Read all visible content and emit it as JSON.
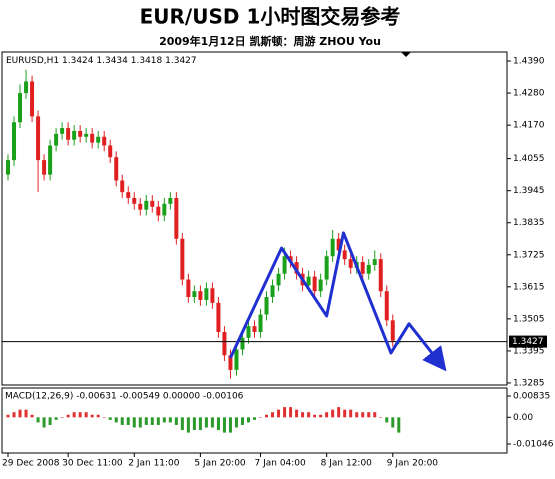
{
  "chart_data": [
    {
      "type": "candlestick",
      "title": "EUR/USD 1小时图交易参考",
      "subtitle": "2009年1月12日  凯斯顿：周游 ZHOU You",
      "symbol": "EURUSD,H1",
      "up_color": "#1aa01a",
      "down_color": "#e02020",
      "xlim": [
        -1,
        83
      ],
      "ylim": [
        1.3278,
        1.4421
      ],
      "yticks": [
        {
          "value": 1.439,
          "label": "1.4390"
        },
        {
          "value": 1.428,
          "label": "1.4280"
        },
        {
          "value": 1.417,
          "label": "1.4170"
        },
        {
          "value": 1.4055,
          "label": "1.4055"
        },
        {
          "value": 1.3945,
          "label": "1.3945"
        },
        {
          "value": 1.3835,
          "label": "1.3835"
        },
        {
          "value": 1.3725,
          "label": "1.3725"
        },
        {
          "value": 1.3615,
          "label": "1.3615"
        },
        {
          "value": 1.3505,
          "label": "1.3505"
        },
        {
          "value": 1.3395,
          "label": "1.3395"
        },
        {
          "value": 1.3285,
          "label": "1.3285"
        }
      ],
      "xticks": [
        {
          "value": 0,
          "label": "29 Dec 2008"
        },
        {
          "value": 10,
          "label": "30 Dec 11:00"
        },
        {
          "value": 21,
          "label": "2 Jan 11:00"
        },
        {
          "value": 32,
          "label": "5 Jan 20:00"
        },
        {
          "value": 42,
          "label": "7 Jan 04:00"
        },
        {
          "value": 53,
          "label": "8 Jan 12:00"
        },
        {
          "value": 64,
          "label": "9 Jan 20:00"
        }
      ],
      "open": [
        1.4,
        1.405,
        1.418,
        1.428,
        1.432,
        1.42,
        1.405,
        1.4,
        1.41,
        1.414,
        1.416,
        1.412,
        1.415,
        1.413,
        1.414,
        1.411,
        1.413,
        1.41,
        1.406,
        1.398,
        1.394,
        1.392,
        1.39,
        1.388,
        1.391,
        1.389,
        1.386,
        1.39,
        1.392,
        1.378,
        1.364,
        1.358,
        1.36,
        1.357,
        1.361,
        1.356,
        1.346,
        1.338,
        1.333,
        1.34,
        1.344,
        1.348,
        1.346,
        1.352,
        1.358,
        1.362,
        1.366,
        1.372,
        1.37,
        1.366,
        1.362,
        1.365,
        1.36,
        1.364,
        1.372,
        1.378,
        1.374,
        1.371,
        1.368,
        1.37,
        1.366,
        1.369,
        1.371,
        1.36,
        1.35,
        1.3424
      ],
      "high": [
        1.407,
        1.42,
        1.431,
        1.436,
        1.434,
        1.422,
        1.407,
        1.412,
        1.416,
        1.418,
        1.418,
        1.417,
        1.417,
        1.416,
        1.416,
        1.415,
        1.415,
        1.412,
        1.408,
        1.4,
        1.396,
        1.394,
        1.392,
        1.393,
        1.393,
        1.391,
        1.392,
        1.394,
        1.394,
        1.38,
        1.366,
        1.362,
        1.362,
        1.363,
        1.363,
        1.358,
        1.348,
        1.34,
        1.342,
        1.346,
        1.35,
        1.35,
        1.354,
        1.36,
        1.364,
        1.368,
        1.375,
        1.374,
        1.372,
        1.368,
        1.367,
        1.367,
        1.366,
        1.374,
        1.381,
        1.38,
        1.376,
        1.373,
        1.372,
        1.372,
        1.371,
        1.374,
        1.373,
        1.362,
        1.352,
        1.3434
      ],
      "low": [
        1.398,
        1.403,
        1.416,
        1.426,
        1.418,
        1.394,
        1.398,
        1.398,
        1.408,
        1.412,
        1.41,
        1.41,
        1.411,
        1.411,
        1.409,
        1.409,
        1.408,
        1.404,
        1.396,
        1.392,
        1.39,
        1.388,
        1.386,
        1.386,
        1.387,
        1.384,
        1.384,
        1.388,
        1.376,
        1.362,
        1.356,
        1.356,
        1.355,
        1.355,
        1.354,
        1.344,
        1.336,
        1.33,
        1.331,
        1.338,
        1.342,
        1.344,
        1.344,
        1.35,
        1.356,
        1.36,
        1.364,
        1.368,
        1.364,
        1.36,
        1.36,
        1.358,
        1.358,
        1.362,
        1.37,
        1.372,
        1.369,
        1.366,
        1.366,
        1.364,
        1.364,
        1.367,
        1.358,
        1.348,
        1.341,
        1.3418
      ],
      "close": [
        1.405,
        1.418,
        1.428,
        1.432,
        1.42,
        1.405,
        1.4,
        1.41,
        1.414,
        1.416,
        1.412,
        1.415,
        1.413,
        1.414,
        1.411,
        1.413,
        1.41,
        1.406,
        1.398,
        1.394,
        1.392,
        1.39,
        1.388,
        1.391,
        1.389,
        1.386,
        1.39,
        1.392,
        1.378,
        1.364,
        1.358,
        1.36,
        1.357,
        1.361,
        1.356,
        1.346,
        1.338,
        1.333,
        1.34,
        1.344,
        1.348,
        1.346,
        1.352,
        1.358,
        1.362,
        1.366,
        1.372,
        1.37,
        1.366,
        1.362,
        1.365,
        1.36,
        1.364,
        1.372,
        1.378,
        1.374,
        1.371,
        1.368,
        1.37,
        1.366,
        1.369,
        1.371,
        1.36,
        1.35,
        1.343,
        1.3427
      ],
      "zigzag": {
        "color": "#1f2fd0",
        "x": [
          37,
          45.5,
          53,
          55.8,
          63.7,
          66.7,
          71.7
        ],
        "y": [
          1.3371,
          1.3748,
          1.3515,
          1.38,
          1.3388,
          1.3488,
          1.3357
        ]
      }
    },
    {
      "type": "macd",
      "label": "MACD(12,26,9) -0.00631 -0.00549 0.00000 -0.00106",
      "positive_color": "#e03030",
      "negative_color": "#2a9a2a",
      "ylim": [
        -0.014,
        0.0115
      ],
      "yticks": [
        0.00835,
        {
          "value": 0,
          "label": "0.00"
        },
        -0.01046
      ],
      "values": [
        0.001,
        0.002,
        0.003,
        0.003,
        0.001,
        -0.002,
        -0.004,
        -0.003,
        -0.001,
        0.0,
        0.001,
        0.002,
        0.002,
        0.002,
        0.001,
        0.001,
        0.0,
        -0.001,
        -0.002,
        -0.003,
        -0.003,
        -0.004,
        -0.004,
        -0.003,
        -0.003,
        -0.003,
        -0.002,
        -0.002,
        -0.003,
        -0.005,
        -0.006,
        -0.005,
        -0.005,
        -0.004,
        -0.004,
        -0.005,
        -0.006,
        -0.006,
        -0.004,
        -0.003,
        -0.002,
        -0.001,
        0.0,
        0.001,
        0.002,
        0.003,
        0.004,
        0.004,
        0.003,
        0.002,
        0.002,
        0.001,
        0.001,
        0.002,
        0.003,
        0.004,
        0.003,
        0.003,
        0.002,
        0.002,
        0.002,
        0.002,
        0.0,
        -0.002,
        -0.004,
        -0.006
      ]
    }
  ]
}
